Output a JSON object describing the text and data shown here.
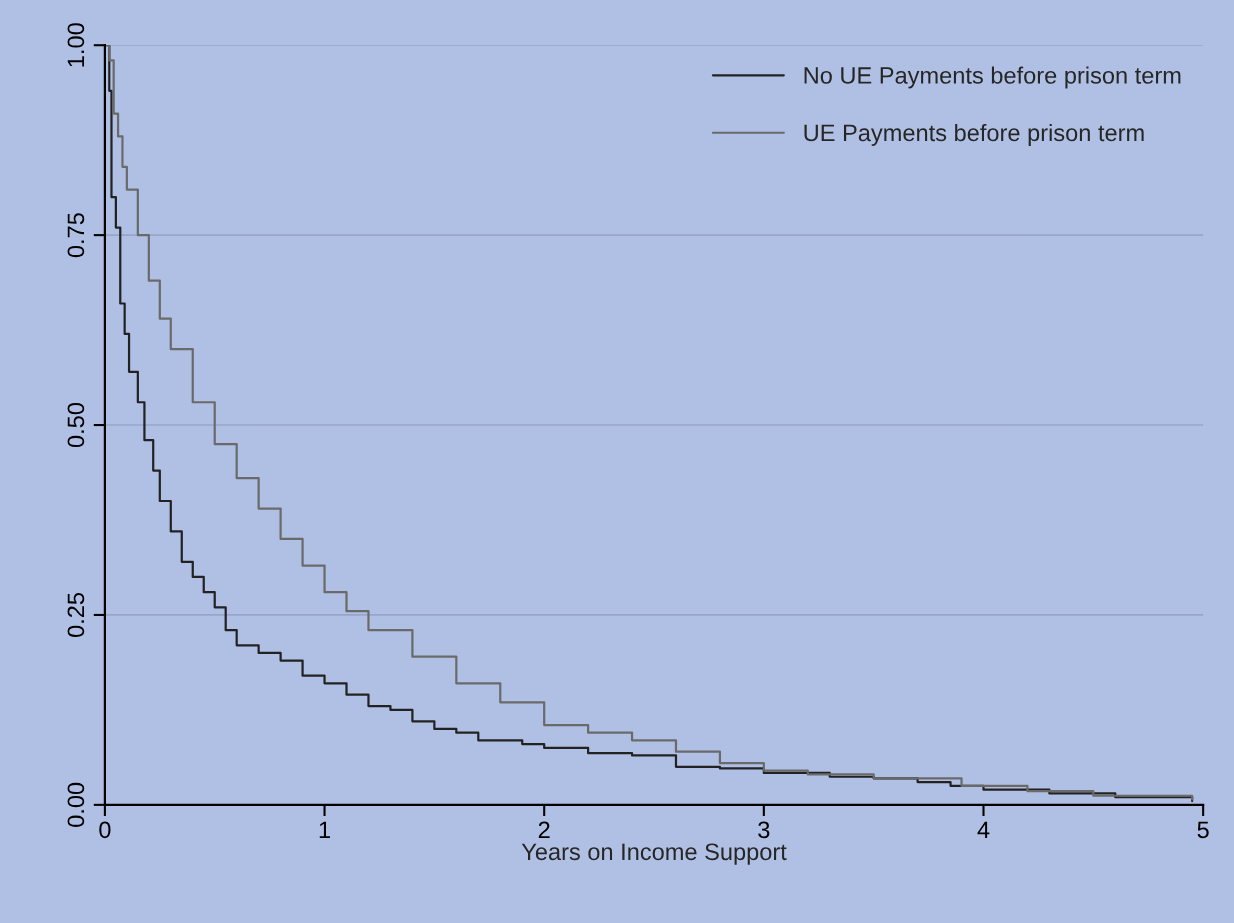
{
  "chart_data": {
    "type": "step",
    "xlabel": "Years on Income Support",
    "xlim": [
      0,
      5
    ],
    "xticks": [
      0,
      1,
      2,
      3,
      4,
      5
    ],
    "ylim": [
      0,
      1
    ],
    "yticks": [
      {
        "value": 0,
        "label": "0.00"
      },
      {
        "value": 0.25,
        "label": "0.25"
      },
      {
        "value": 0.5,
        "label": "0.50"
      },
      {
        "value": 0.75,
        "label": "0.75"
      },
      {
        "value": 1,
        "label": "1.00"
      }
    ],
    "grid": "y",
    "legend": "top right",
    "series": [
      {
        "name": "No UE Payments before prison term",
        "color": "#222222",
        "x": [
          0,
          0.02,
          0.03,
          0.05,
          0.07,
          0.09,
          0.11,
          0.15,
          0.18,
          0.22,
          0.25,
          0.3,
          0.35,
          0.4,
          0.45,
          0.5,
          0.55,
          0.6,
          0.7,
          0.8,
          0.9,
          1.0,
          1.1,
          1.2,
          1.3,
          1.4,
          1.5,
          1.6,
          1.7,
          1.9,
          2.0,
          2.2,
          2.4,
          2.6,
          2.8,
          3.0,
          3.3,
          3.5,
          3.7,
          3.85,
          4.0,
          4.3,
          4.6,
          4.95
        ],
        "values": [
          1.0,
          0.94,
          0.8,
          0.76,
          0.66,
          0.62,
          0.57,
          0.53,
          0.48,
          0.44,
          0.4,
          0.36,
          0.32,
          0.3,
          0.28,
          0.26,
          0.23,
          0.21,
          0.2,
          0.19,
          0.17,
          0.16,
          0.145,
          0.13,
          0.125,
          0.11,
          0.1,
          0.095,
          0.085,
          0.08,
          0.075,
          0.068,
          0.065,
          0.05,
          0.048,
          0.042,
          0.037,
          0.035,
          0.03,
          0.025,
          0.02,
          0.015,
          0.01,
          0.005
        ]
      },
      {
        "name": "UE Payments before prison term",
        "color": "#6a6a6a",
        "x": [
          0,
          0.02,
          0.04,
          0.06,
          0.08,
          0.1,
          0.15,
          0.2,
          0.25,
          0.3,
          0.4,
          0.5,
          0.6,
          0.7,
          0.8,
          0.9,
          1.0,
          1.1,
          1.2,
          1.4,
          1.6,
          1.8,
          2.0,
          2.2,
          2.4,
          2.6,
          2.8,
          3.0,
          3.2,
          3.5,
          3.9,
          4.2,
          4.5,
          4.95
        ],
        "values": [
          1.0,
          0.98,
          0.91,
          0.88,
          0.84,
          0.81,
          0.75,
          0.69,
          0.64,
          0.6,
          0.53,
          0.475,
          0.43,
          0.39,
          0.35,
          0.315,
          0.28,
          0.255,
          0.23,
          0.195,
          0.16,
          0.135,
          0.105,
          0.095,
          0.085,
          0.07,
          0.055,
          0.045,
          0.04,
          0.035,
          0.025,
          0.018,
          0.012,
          0.007
        ]
      }
    ]
  }
}
